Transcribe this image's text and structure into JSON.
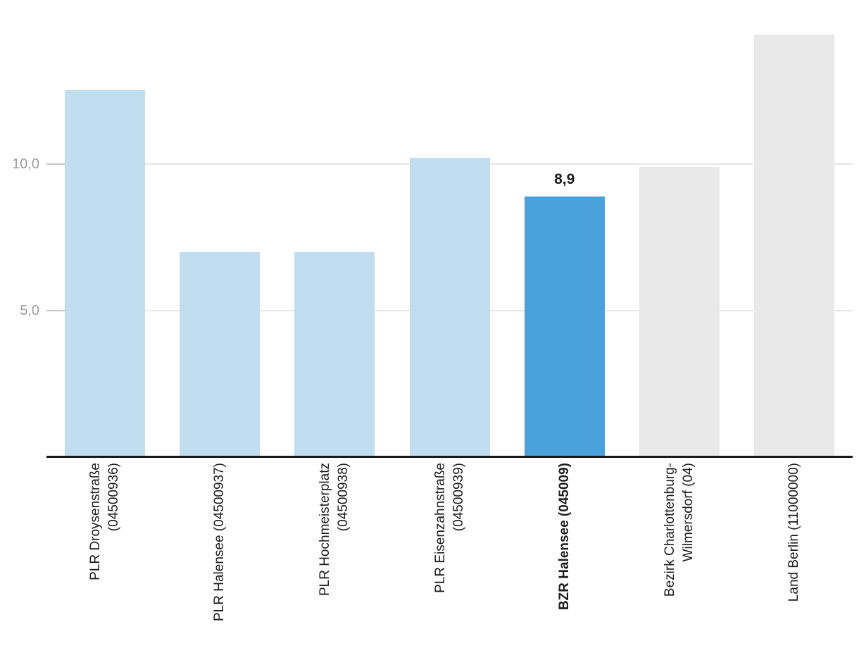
{
  "chart_data": {
    "type": "bar",
    "title": "",
    "xlabel": "",
    "ylabel": "",
    "legend": "none",
    "grid": "horizontal",
    "ylim": [
      0,
      14.5
    ],
    "categories": [
      "PLR Droysenstraße (04500936)",
      "PLR Halensee (04500937)",
      "PLR Hochmeisterplatz (04500938)",
      "PLR Eisenzahnstraße (04500939)",
      "BZR Halensee (045009)",
      "Bezirk Charlottenburg-Wilmersdorf (04)",
      "Land Berlin (11000000)"
    ],
    "category_label_lines": [
      [
        "PLR Droysenstraße",
        "(04500936)"
      ],
      [
        "PLR Halensee (04500937)"
      ],
      [
        "PLR Hochmeisterplatz",
        "(04500938)"
      ],
      [
        "PLR Eisenzahnstraße",
        "(04500939)"
      ],
      [
        "BZR Halensee (045009)"
      ],
      [
        "Bezirk Charlottenburg-",
        "Wilmersdorf (04)"
      ],
      [
        "Land Berlin (11000000)"
      ]
    ],
    "values": [
      12.5,
      7.0,
      7.0,
      10.2,
      8.9,
      9.9,
      14.4
    ],
    "value_labels": [
      null,
      null,
      null,
      null,
      "8,9",
      null,
      null
    ],
    "bar_roles": [
      "plr",
      "plr",
      "plr",
      "plr",
      "highlight",
      "reference",
      "reference"
    ],
    "highlighted_index": 4,
    "bold_category_indexes": [
      4
    ],
    "yticks": [
      {
        "value": 5,
        "label": "5,0"
      },
      {
        "value": 10,
        "label": "10,0"
      }
    ],
    "colors": {
      "plr": "#c1def1",
      "highlight": "#4aa1dc",
      "reference": "#e9e9e9",
      "gridline": "#e7e7e7",
      "tick": "#c6c6c6",
      "axis_line": "#1a1a1a",
      "ytick_text": "#9e9e9e",
      "xtick_text": "#1c1c1c",
      "value_label_text": "#1a1a1a"
    }
  }
}
